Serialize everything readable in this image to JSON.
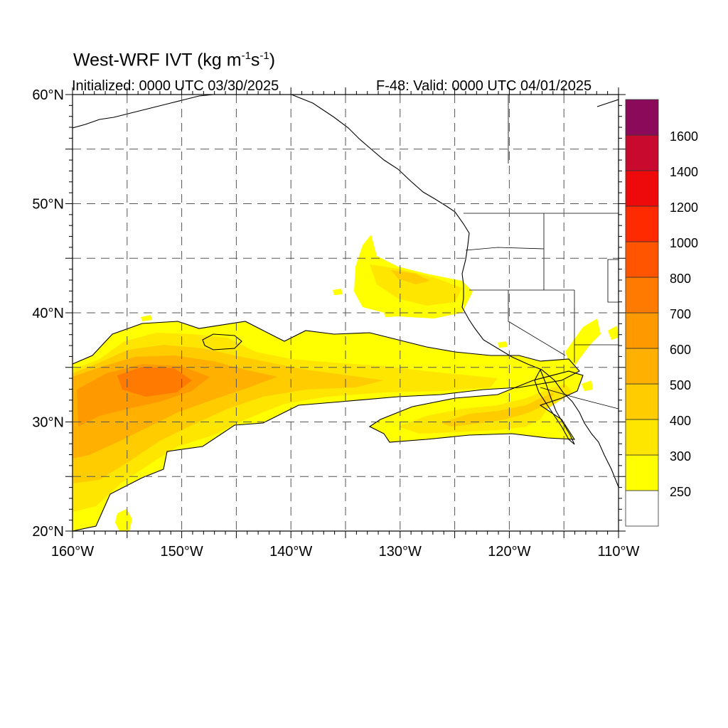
{
  "header": {
    "title_main": "West-WRF IVT (kg m",
    "title_exp1": "-1",
    "title_mid": "s",
    "title_exp2": "-1",
    "title_end": ")",
    "initialized": "Initialized: 0000 UTC 03/30/2025",
    "valid": "F-48: Valid: 0000 UTC 04/01/2025"
  },
  "map": {
    "lon_range": [
      -160,
      -110
    ],
    "lat_range": [
      20,
      60
    ],
    "lon_ticks": [
      -160,
      -150,
      -140,
      -130,
      -120,
      -110
    ],
    "lat_ticks": [
      20,
      30,
      40,
      50,
      60
    ],
    "lon_labels": [
      "160°W",
      "150°W",
      "140°W",
      "130°W",
      "120°W",
      "110°W"
    ],
    "lat_labels": [
      "20°N",
      "30°N",
      "40°N",
      "50°N",
      "60°N"
    ],
    "grid": "dashed every 5°",
    "ivt_features": [
      {
        "name": "main atmospheric river",
        "region": "26–38°N, 160–118°W",
        "core_value": "600–700",
        "core_location": "~33.5°N, 154°W"
      },
      {
        "name": "secondary plume",
        "region": "40–44°N, 134–124°W",
        "core_value": "300–400"
      },
      {
        "name": "southern branch",
        "region": "28–32°N, 130–115°W",
        "core_value": "300–400"
      }
    ]
  },
  "colorbar": {
    "colors": [
      "#ffffff",
      "#ffff00",
      "#ffe600",
      "#ffcc00",
      "#ffb000",
      "#ff9900",
      "#ff7a00",
      "#ff5500",
      "#ff2a00",
      "#ee0a0a",
      "#c80a2e",
      "#8c0a5a",
      "#5a0a8c"
    ],
    "labels": [
      "250",
      "300",
      "400",
      "500",
      "600",
      "700",
      "800",
      "1000",
      "1200",
      "1400",
      "1600"
    ]
  }
}
